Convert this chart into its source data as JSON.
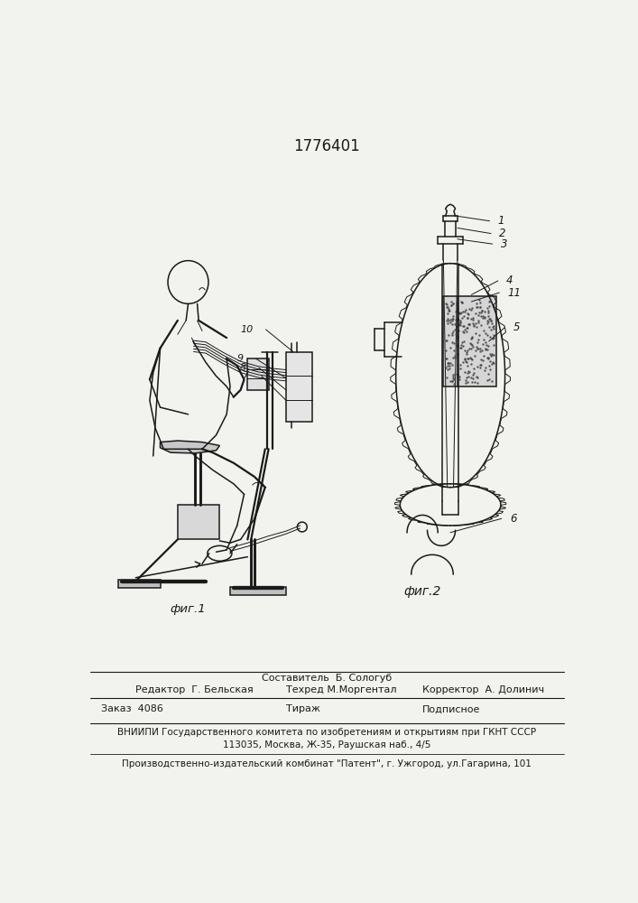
{
  "patent_number": "1776401",
  "fig1_label": "фиг.1",
  "fig2_label": "фиг.2",
  "bg_color": "#f2f2ee",
  "line_color": "#1a1a1a",
  "title_fontsize": 12,
  "body_fontsize": 8.0,
  "small_fontsize": 7.0
}
